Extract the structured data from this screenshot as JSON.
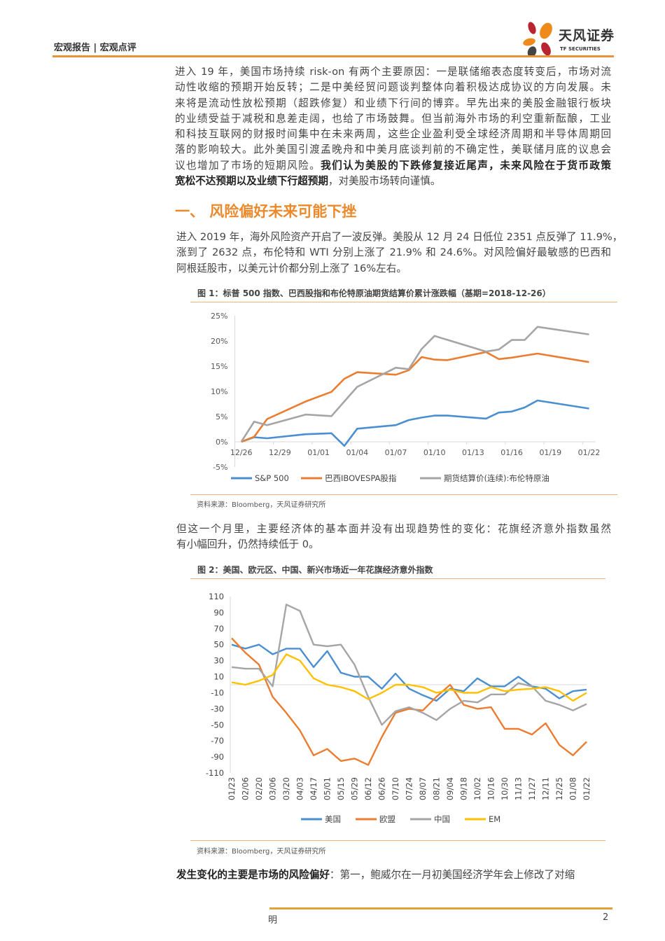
{
  "header": {
    "report_type": "宏观报告 | 宏观点评",
    "logo_cn": "天风证券",
    "logo_en": "TF SECURITIES",
    "accent": "#e8923a"
  },
  "paragraphs": [
    {
      "lines": [
        [
          {
            "t": "进入 19 年，美国市场持续 risk-on 有两个主要原因：一是联储缩表态度转变后，市场对流"
          }
        ],
        [
          {
            "t": "动性收缩的预期开始反转；二是中美经贸问题谈判整体向着积极达成协议的方向发展。未"
          }
        ],
        [
          {
            "t": "来将是流动性放松预期（超跌修复）和业绩下行间的博弈。早先出来的美股金融银行板块"
          }
        ],
        [
          {
            "t": "的业绩受益于减税和息差走阔，也给了市场鼓舞。但当前海外市场的利空重新酝酿，工业"
          }
        ],
        [
          {
            "t": "和科技互联网的财报时间集中在未来两周，这些企业盈利受全球经济周期和半导体周期回"
          }
        ],
        [
          {
            "t": "落的影响较大。此外美国引渡孟晚舟和中美月底谈判前的不确定性，美联储月底的议息会"
          }
        ],
        [
          {
            "t": "议也增加了市场的短期风险。"
          },
          {
            "t": "我们认为美股的下跌修复接近尾声，未来风险在于货币政策",
            "b": true
          }
        ],
        [
          {
            "t": "宽松不达预期以及业绩下行超预期",
            "b": true
          },
          {
            "t": "，对美股市场转向谨慎。"
          }
        ]
      ]
    },
    {
      "lines": [
        [
          {
            "t": "进入 2019 年，海外风险资产开启了一波反弹。美股从 12 月 24 日低位 2351 点反弹了 11.9%，"
          }
        ],
        [
          {
            "t": "涨到了 2632 点，布伦特和 WTI 分别上涨了 21.9% 和 24.6%。对风险偏好最敏感的巴西和"
          }
        ],
        [
          {
            "t": "阿根廷股市，以美元计价都分别上涨了 16%左右。"
          }
        ]
      ]
    },
    {
      "lines": [
        [
          {
            "t": "但这一个月里，主要经济体的基本面并没有出现趋势性的变化：花旗经济意外指数虽然"
          }
        ],
        [
          {
            "t": "有小幅回升，仍然持续低于 0。"
          }
        ]
      ]
    },
    {
      "lines": [
        [
          {
            "t": "发生变化的主要是市场的风险偏好",
            "b": true
          },
          {
            "t": "：第一，鲍威尔在一月初美国经济学年会上修改了对缩"
          }
        ]
      ]
    }
  ],
  "section_heading": "一、  风险偏好未来可能下挫",
  "figures": [
    {
      "title": "图 1：标普 500 指数、巴西股指和布伦特原油期货结算价累计涨跌幅（基期=2018-12-26）",
      "source": "资料来源：Bloomberg，天风证券研究所"
    },
    {
      "title": "图 2：美国、欧元区、中国、新兴市场近一年花旗经济意外指数",
      "source": "资料来源：Bloomberg，天风证券研究所"
    }
  ],
  "footer": {
    "left": "明",
    "page": "2"
  },
  "chart_data": [
    {
      "type": "line",
      "x_tick_labels": [
        "12/26",
        "12/29",
        "01/01",
        "01/04",
        "01/07",
        "01/10",
        "01/13",
        "01/16",
        "01/19",
        "01/22"
      ],
      "x": [
        "12/26",
        "12/27",
        "12/28",
        "12/31",
        "01/02",
        "01/03",
        "01/04",
        "01/07",
        "01/08",
        "01/09",
        "01/10",
        "01/11",
        "01/14",
        "01/15",
        "01/16",
        "01/17",
        "01/18",
        "01/22"
      ],
      "y_tick_labels": [
        "25%",
        "20%",
        "15%",
        "10%",
        "5%",
        "0%",
        "-5%"
      ],
      "ylim": [
        -5,
        25
      ],
      "y_unit": "%",
      "grid": false,
      "legend": "bottom",
      "series": [
        {
          "name": "S&P 500",
          "color": "#4a8fd0",
          "values": [
            0,
            0.9,
            0.7,
            1.5,
            1.7,
            -0.8,
            2.6,
            3.3,
            4.3,
            4.8,
            5.2,
            5.2,
            4.6,
            5.8,
            6.0,
            6.8,
            8.2,
            6.6
          ]
        },
        {
          "name": "巴西IBOVESPA股指",
          "color": "#ec7c30",
          "values": [
            0,
            1.0,
            4.5,
            8.0,
            9.9,
            12.5,
            13.8,
            13.3,
            14.2,
            16.8,
            16.3,
            16.2,
            17.8,
            16.4,
            16.7,
            17.1,
            17.5,
            15.8
          ]
        },
        {
          "name": "期货结算价(连续):布伦特原油",
          "color": "#a5a5a5",
          "values": [
            0,
            4.0,
            3.3,
            5.4,
            5.1,
            8.0,
            10.9,
            14.7,
            14.4,
            18.4,
            21.0,
            null,
            17.9,
            18.3,
            20.2,
            20.2,
            22.8,
            21.3
          ]
        }
      ]
    },
    {
      "type": "line",
      "x": [
        "01/23",
        "02/06",
        "02/20",
        "03/06",
        "03/20",
        "04/03",
        "04/17",
        "05/01",
        "05/15",
        "05/29",
        "06/12",
        "06/26",
        "07/10",
        "07/24",
        "08/07",
        "08/21",
        "09/04",
        "09/18",
        "10/02",
        "10/16",
        "10/30",
        "11/13",
        "11/27",
        "12/11",
        "12/25",
        "01/08",
        "01/22"
      ],
      "y_tick_labels": [
        "110",
        "90",
        "70",
        "50",
        "30",
        "10",
        "-10",
        "-30",
        "-50",
        "-70",
        "-90",
        "-110"
      ],
      "ylim": [
        -110,
        110
      ],
      "grid": false,
      "legend": "bottom",
      "series": [
        {
          "name": "美国",
          "color": "#4a8fd0",
          "values": [
            50,
            45,
            50,
            38,
            45,
            45,
            22,
            42,
            15,
            10,
            10,
            -5,
            14,
            -5,
            -13,
            -20,
            -5,
            -8,
            8,
            -2,
            -2,
            10,
            -2,
            -5,
            -17,
            -8,
            -6
          ]
        },
        {
          "name": "欧盟",
          "color": "#ec7c30",
          "values": [
            58,
            40,
            25,
            -15,
            -35,
            -57,
            -88,
            -80,
            -95,
            -92,
            -100,
            -65,
            -35,
            -30,
            -32,
            -15,
            0,
            -25,
            -30,
            -28,
            -55,
            -55,
            -62,
            -48,
            -75,
            -88,
            -71
          ]
        },
        {
          "name": "中国",
          "color": "#a5a5a5",
          "values": [
            22,
            20,
            20,
            -2,
            100,
            92,
            50,
            48,
            50,
            25,
            -15,
            -50,
            -33,
            -28,
            -35,
            -44,
            -30,
            -20,
            -22,
            -12,
            -12,
            2,
            -2,
            -20,
            -25,
            -32,
            -24
          ]
        },
        {
          "name": "EM",
          "color": "#ffc000",
          "values": [
            3,
            0,
            5,
            12,
            38,
            30,
            8,
            0,
            -3,
            -8,
            -18,
            -10,
            0,
            0,
            -3,
            -10,
            -6,
            -10,
            -10,
            -3,
            -8,
            -6,
            -5,
            -3,
            -8,
            -20,
            -10
          ]
        }
      ]
    }
  ]
}
